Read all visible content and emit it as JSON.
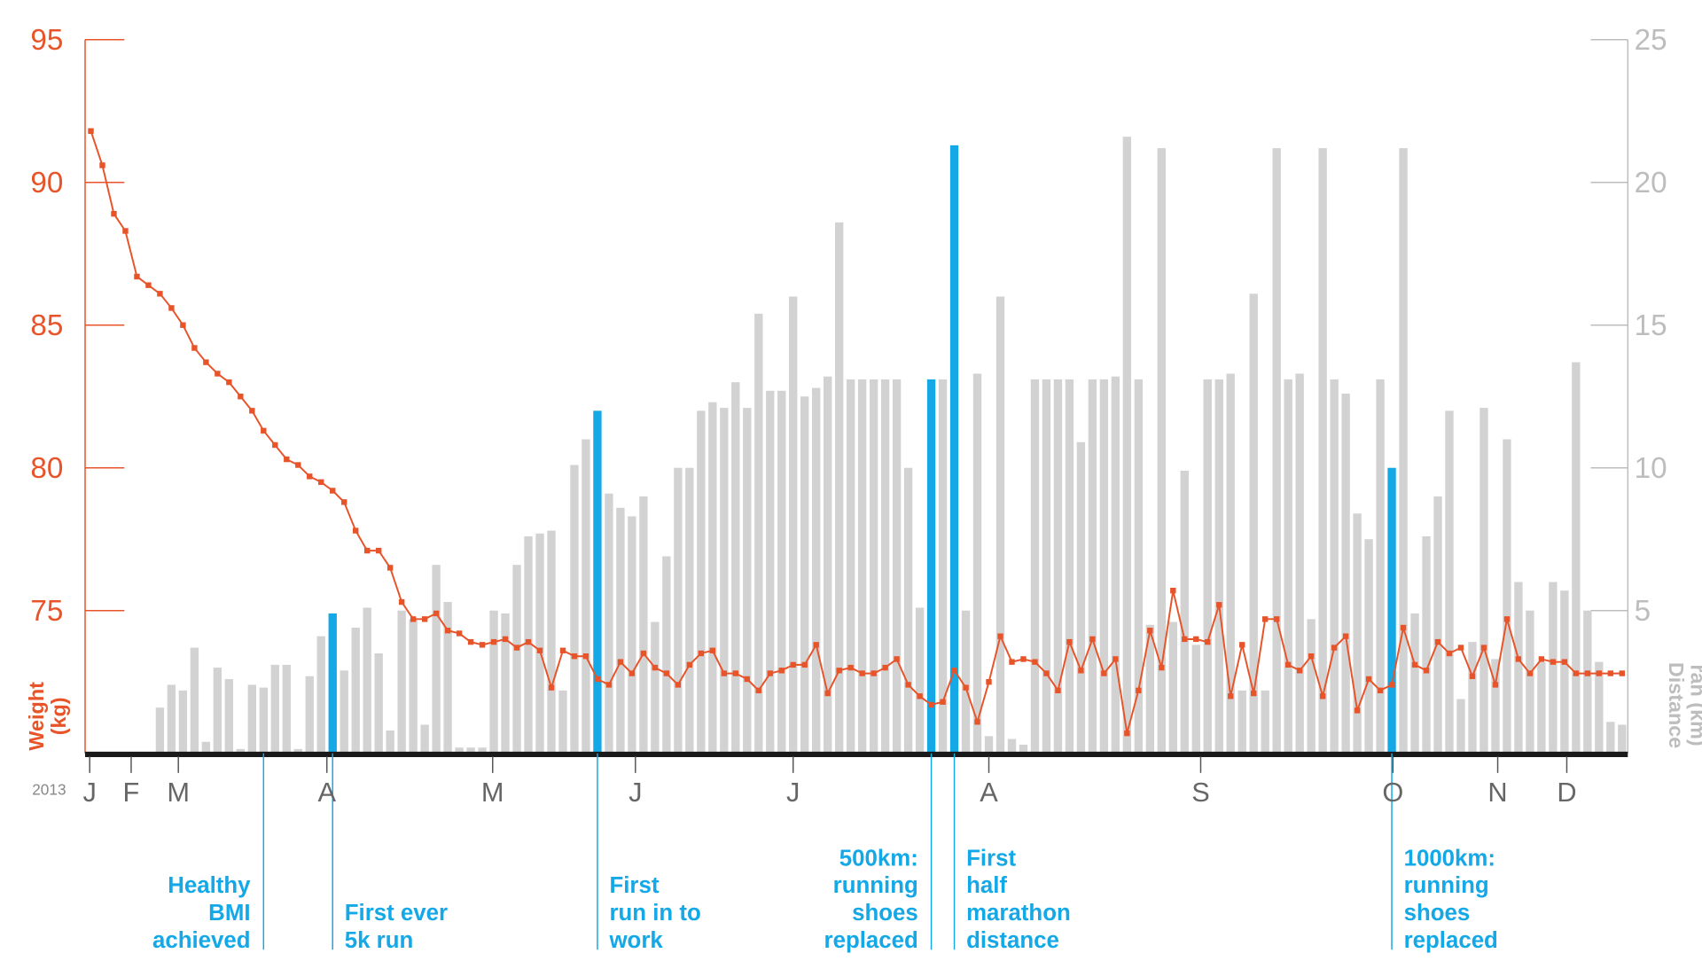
{
  "chart_data": {
    "type": "combo",
    "ylabel": [
      "Weight",
      "(kg)"
    ],
    "y2label": [
      "Distance",
      "ran (km)"
    ],
    "xlabel": "2013",
    "xlim": [
      0,
      134
    ],
    "xticks": [
      {
        "value": 0.4,
        "label": "J"
      },
      {
        "value": 4.0,
        "label": "F"
      },
      {
        "value": 8.1,
        "label": "M"
      },
      {
        "value": 21.0,
        "label": "A"
      },
      {
        "value": 35.4,
        "label": "M"
      },
      {
        "value": 47.8,
        "label": "J"
      },
      {
        "value": 61.5,
        "label": "J"
      },
      {
        "value": 78.5,
        "label": "A"
      },
      {
        "value": 96.9,
        "label": "S"
      },
      {
        "value": 113.6,
        "label": "O"
      },
      {
        "value": 122.7,
        "label": "N"
      },
      {
        "value": 128.7,
        "label": "D"
      }
    ],
    "ylim": [
      70,
      95
    ],
    "yticks": [
      75,
      80,
      85,
      90,
      95
    ],
    "ycolor": "#e8542a",
    "y2lim": [
      0,
      25
    ],
    "y2ticks": [
      5,
      10,
      15,
      20,
      25
    ],
    "y2color": "#bdbdbd",
    "series": [
      {
        "type": "bar",
        "axis": "y2",
        "color": "#d2d2d2",
        "x": [
          6.5,
          7.5,
          8.5,
          9.5,
          10.5,
          11.5,
          12.5,
          13.5,
          14.5,
          15.5,
          16.5,
          17.5,
          18.5,
          19.5,
          20.5,
          22.5,
          23.5,
          24.5,
          25.5,
          26.5,
          27.5,
          28.5,
          29.5,
          30.5,
          31.5,
          32.5,
          33.5,
          34.5,
          35.5,
          36.5,
          37.5,
          38.5,
          39.5,
          40.5,
          41.5,
          42.5,
          43.5,
          45.5,
          46.5,
          47.5,
          48.5,
          49.5,
          50.5,
          51.5,
          52.5,
          53.5,
          54.5,
          55.5,
          56.5,
          57.5,
          58.5,
          59.5,
          60.5,
          61.5,
          62.5,
          63.5,
          64.5,
          65.5,
          66.5,
          67.5,
          68.5,
          69.5,
          70.5,
          71.5,
          72.5,
          74.5,
          76.5,
          77.5,
          78.5,
          79.5,
          80.5,
          81.5,
          82.5,
          83.5,
          84.5,
          85.5,
          86.5,
          87.5,
          88.5,
          89.5,
          90.5,
          91.5,
          92.5,
          93.5,
          94.5,
          95.5,
          96.5,
          97.5,
          98.5,
          99.5,
          100.5,
          101.5,
          102.5,
          103.5,
          104.5,
          105.5,
          106.5,
          107.5,
          108.5,
          109.5,
          110.5,
          111.5,
          112.5,
          114.5,
          115.5,
          116.5,
          117.5,
          118.5,
          119.5,
          120.5,
          121.5,
          122.5,
          123.5,
          124.5,
          125.5,
          126.5,
          127.5,
          128.5,
          129.5,
          130.5,
          131.5,
          132.5,
          133.5
        ],
        "values": [
          1.6,
          2.4,
          2.2,
          3.7,
          0.4,
          3.0,
          2.6,
          0.15,
          2.4,
          2.3,
          3.1,
          3.1,
          0.15,
          2.7,
          4.1,
          2.9,
          4.4,
          5.1,
          3.5,
          0.8,
          5.0,
          4.7,
          1.0,
          6.6,
          5.3,
          0.2,
          0.2,
          0.2,
          5.0,
          4.9,
          6.6,
          7.6,
          7.7,
          7.8,
          2.2,
          10.1,
          11.0,
          9.1,
          8.6,
          8.3,
          9.0,
          4.6,
          6.9,
          10.0,
          10.0,
          12.0,
          12.3,
          12.1,
          13.0,
          12.1,
          15.4,
          12.7,
          12.7,
          16.0,
          12.5,
          12.8,
          13.2,
          18.6,
          13.1,
          13.1,
          13.1,
          13.1,
          13.1,
          10.0,
          5.1,
          13.1,
          5.0,
          13.3,
          0.6,
          16.0,
          0.5,
          0.3,
          13.1,
          13.1,
          13.1,
          13.1,
          10.9,
          13.1,
          13.1,
          13.2,
          21.6,
          13.1,
          4.5,
          21.2,
          4.6,
          9.9,
          3.8,
          13.1,
          13.1,
          13.3,
          2.2,
          16.1,
          2.2,
          21.2,
          13.1,
          13.3,
          4.7,
          21.2,
          13.1,
          12.6,
          8.4,
          7.5,
          13.1,
          21.2,
          4.9,
          7.6,
          9.0,
          12.0,
          1.9,
          3.9,
          12.1,
          3.3,
          11.0,
          6.0,
          5.0,
          3.2,
          6.0,
          5.7,
          13.7,
          5.0,
          3.2,
          1.1,
          1.0
        ]
      },
      {
        "type": "bar",
        "axis": "y2",
        "color": "#15a8e6",
        "x": [
          21.5,
          44.5,
          73.5,
          75.5,
          113.5
        ],
        "values": [
          4.9,
          12.0,
          13.1,
          21.3,
          10.0
        ]
      },
      {
        "type": "line",
        "axis": "y",
        "color": "#e8542a",
        "x": [
          0.5,
          1.5,
          2.5,
          3.5,
          4.5,
          5.5,
          6.5,
          7.5,
          8.5,
          9.5,
          10.5,
          11.5,
          12.5,
          13.5,
          14.5,
          15.5,
          16.5,
          17.5,
          18.5,
          19.5,
          20.5,
          21.5,
          22.5,
          23.5,
          24.5,
          25.5,
          26.5,
          27.5,
          28.5,
          29.5,
          30.5,
          31.5,
          32.5,
          33.5,
          34.5,
          35.5,
          36.5,
          37.5,
          38.5,
          39.5,
          40.5,
          41.5,
          42.5,
          43.5,
          44.5,
          45.5,
          46.5,
          47.5,
          48.5,
          49.5,
          50.5,
          51.5,
          52.5,
          53.5,
          54.5,
          55.5,
          56.5,
          57.5,
          58.5,
          59.5,
          60.5,
          61.5,
          62.5,
          63.5,
          64.5,
          65.5,
          66.5,
          67.5,
          68.5,
          69.5,
          70.5,
          71.5,
          72.5,
          73.5,
          74.5,
          75.5,
          76.5,
          77.5,
          78.5,
          79.5,
          80.5,
          81.5,
          82.5,
          83.5,
          84.5,
          85.5,
          86.5,
          87.5,
          88.5,
          89.5,
          90.5,
          91.5,
          92.5,
          93.5,
          94.5,
          95.5,
          96.5,
          97.5,
          98.5,
          99.5,
          100.5,
          101.5,
          102.5,
          103.5,
          104.5,
          105.5,
          106.5,
          107.5,
          108.5,
          109.5,
          110.5,
          111.5,
          112.5,
          113.5,
          114.5,
          115.5,
          116.5,
          117.5,
          118.5,
          119.5,
          120.5,
          121.5,
          122.5,
          123.5,
          124.5,
          125.5,
          126.5,
          127.5,
          128.5,
          129.5,
          130.5,
          131.5,
          132.5,
          133.5
        ],
        "values": [
          91.8,
          90.6,
          88.9,
          88.3,
          86.7,
          86.4,
          86.1,
          85.6,
          85.0,
          84.2,
          83.7,
          83.3,
          83.0,
          82.5,
          82.0,
          81.3,
          80.8,
          80.3,
          80.1,
          79.7,
          79.5,
          79.2,
          78.8,
          77.8,
          77.1,
          77.1,
          76.5,
          75.3,
          74.7,
          74.7,
          74.9,
          74.3,
          74.2,
          73.9,
          73.8,
          73.9,
          74.0,
          73.7,
          73.9,
          73.6,
          72.3,
          73.6,
          73.4,
          73.4,
          72.6,
          72.4,
          73.2,
          72.8,
          73.5,
          73.0,
          72.8,
          72.4,
          73.1,
          73.5,
          73.6,
          72.8,
          72.8,
          72.6,
          72.2,
          72.8,
          72.9,
          73.1,
          73.1,
          73.8,
          72.1,
          72.9,
          73.0,
          72.8,
          72.8,
          73.0,
          73.3,
          72.4,
          72.0,
          71.7,
          71.8,
          72.9,
          72.3,
          71.1,
          72.5,
          74.1,
          73.2,
          73.3,
          73.2,
          72.8,
          72.2,
          73.9,
          72.9,
          74.0,
          72.8,
          73.3,
          70.7,
          72.2,
          74.3,
          73.0,
          75.7,
          74.0,
          74.0,
          73.9,
          75.2,
          72.0,
          73.8,
          72.1,
          74.7,
          74.7,
          73.1,
          72.9,
          73.4,
          72.0,
          73.7,
          74.1,
          71.5,
          72.6,
          72.2,
          72.4,
          74.4,
          73.1,
          72.9,
          73.9,
          73.5,
          73.7,
          72.7,
          73.7,
          72.4,
          74.7,
          73.3,
          72.8,
          73.3,
          73.2,
          73.2,
          72.8,
          72.8,
          72.8,
          72.8,
          72.8
        ]
      }
    ],
    "annotations": [
      {
        "x": 15.5,
        "align": "right",
        "lines": [
          "Healthy",
          "BMI",
          "achieved"
        ]
      },
      {
        "x": 21.5,
        "align": "left",
        "lines": [
          "First ever",
          "5k run"
        ]
      },
      {
        "x": 44.5,
        "align": "left",
        "lines": [
          "First",
          "run in to",
          "work"
        ]
      },
      {
        "x": 73.5,
        "align": "right",
        "lines": [
          "500km:",
          "running",
          "shoes",
          "replaced"
        ]
      },
      {
        "x": 75.5,
        "align": "left",
        "lines": [
          "First",
          "half",
          "marathon",
          "distance"
        ]
      },
      {
        "x": 113.5,
        "align": "left",
        "lines": [
          "1000km:",
          "running",
          "shoes",
          "replaced"
        ]
      }
    ],
    "annotation_color": "#15a8e6"
  }
}
